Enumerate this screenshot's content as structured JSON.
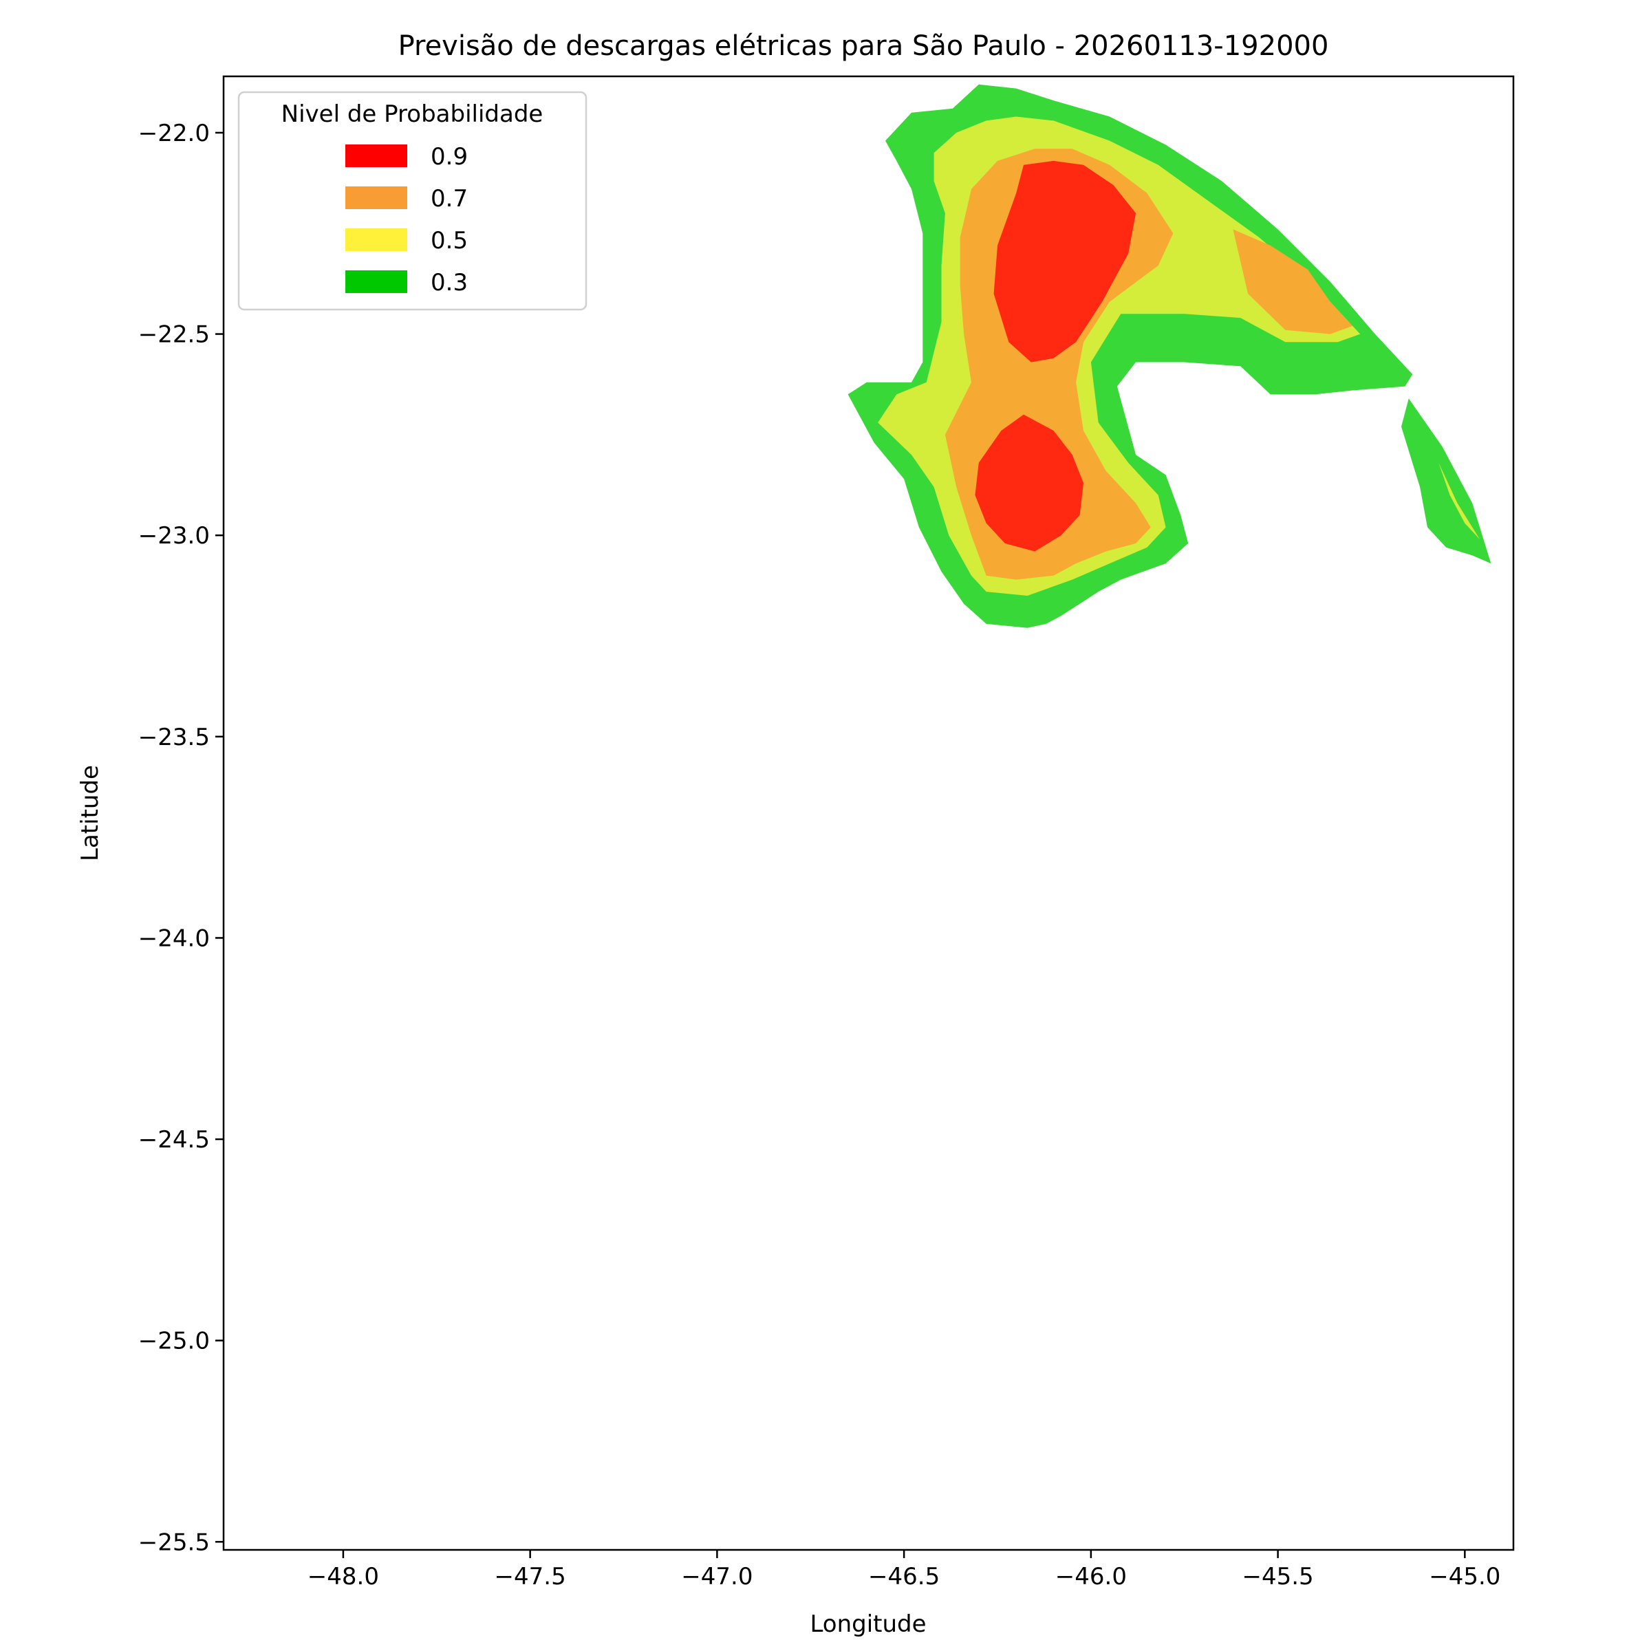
{
  "chart_data": {
    "type": "contourf",
    "title": "Previsão de descargas elétricas para São Paulo - 20260113-192000",
    "xlabel": "Longitude",
    "ylabel": "Latitude",
    "xlim": [
      -48.32,
      -44.87
    ],
    "ylim": [
      -25.52,
      -21.86
    ],
    "xticks": [
      {
        "value": -48.0,
        "label": "−48.0"
      },
      {
        "value": -47.5,
        "label": "−47.5"
      },
      {
        "value": -47.0,
        "label": "−47.0"
      },
      {
        "value": -46.5,
        "label": "−46.5"
      },
      {
        "value": -46.0,
        "label": "−46.0"
      },
      {
        "value": -45.5,
        "label": "−45.5"
      },
      {
        "value": -45.0,
        "label": "−45.0"
      }
    ],
    "yticks": [
      {
        "value": -22.0,
        "label": "−22.0"
      },
      {
        "value": -22.5,
        "label": "−22.5"
      },
      {
        "value": -23.0,
        "label": "−23.0"
      },
      {
        "value": -23.5,
        "label": "−23.5"
      },
      {
        "value": -24.0,
        "label": "−24.0"
      },
      {
        "value": -24.5,
        "label": "−24.5"
      },
      {
        "value": -25.0,
        "label": "−25.0"
      },
      {
        "value": -25.5,
        "label": "−25.5"
      }
    ],
    "grid": false,
    "legend": {
      "title": "Nivel de Probabilidade",
      "placement": "upper-left",
      "entries": [
        {
          "label": "0.9",
          "color": "#ff0000"
        },
        {
          "label": "0.7",
          "color": "#f89c34"
        },
        {
          "label": "0.5",
          "color": "#fff03a"
        },
        {
          "label": "0.3",
          "color": "#00c800"
        }
      ]
    },
    "fill_colors": {
      "0.3": "#38d838",
      "0.5": "#d4ed3a",
      "0.7": "#f6aa34",
      "0.9": "#ff2810"
    },
    "regions": [
      {
        "level": "0.3",
        "polygon": [
          [
            -46.55,
            -22.02
          ],
          [
            -46.48,
            -21.95
          ],
          [
            -46.37,
            -21.94
          ],
          [
            -46.3,
            -21.88
          ],
          [
            -46.2,
            -21.89
          ],
          [
            -46.1,
            -21.92
          ],
          [
            -45.95,
            -21.96
          ],
          [
            -45.8,
            -22.03
          ],
          [
            -45.65,
            -22.12
          ],
          [
            -45.5,
            -22.24
          ],
          [
            -45.36,
            -22.37
          ],
          [
            -45.24,
            -22.5
          ],
          [
            -45.14,
            -22.6
          ],
          [
            -45.16,
            -22.63
          ],
          [
            -45.3,
            -22.64
          ],
          [
            -45.4,
            -22.65
          ],
          [
            -45.52,
            -22.65
          ],
          [
            -45.6,
            -22.58
          ],
          [
            -45.75,
            -22.57
          ],
          [
            -45.88,
            -22.57
          ],
          [
            -45.93,
            -22.63
          ],
          [
            -45.88,
            -22.8
          ],
          [
            -45.8,
            -22.85
          ],
          [
            -45.76,
            -22.95
          ],
          [
            -45.74,
            -23.02
          ],
          [
            -45.8,
            -23.07
          ],
          [
            -45.92,
            -23.11
          ],
          [
            -45.98,
            -23.14
          ],
          [
            -46.03,
            -23.17
          ],
          [
            -46.08,
            -23.2
          ],
          [
            -46.12,
            -23.22
          ],
          [
            -46.17,
            -23.23
          ],
          [
            -46.28,
            -23.22
          ],
          [
            -46.34,
            -23.17
          ],
          [
            -46.4,
            -23.09
          ],
          [
            -46.46,
            -22.98
          ],
          [
            -46.5,
            -22.86
          ],
          [
            -46.58,
            -22.77
          ],
          [
            -46.65,
            -22.65
          ],
          [
            -46.6,
            -22.62
          ],
          [
            -46.48,
            -22.62
          ],
          [
            -46.45,
            -22.57
          ],
          [
            -46.45,
            -22.4
          ],
          [
            -46.45,
            -22.25
          ],
          [
            -46.48,
            -22.14
          ],
          [
            -46.52,
            -22.07
          ]
        ]
      },
      {
        "level": "0.3",
        "polygon": [
          [
            -45.15,
            -22.66
          ],
          [
            -45.06,
            -22.78
          ],
          [
            -44.98,
            -22.92
          ],
          [
            -44.93,
            -23.07
          ],
          [
            -44.98,
            -23.05
          ],
          [
            -45.05,
            -23.03
          ],
          [
            -45.1,
            -22.98
          ],
          [
            -45.12,
            -22.88
          ],
          [
            -45.17,
            -22.73
          ]
        ]
      },
      {
        "level": "0.5",
        "polygon": [
          [
            -46.42,
            -22.05
          ],
          [
            -46.36,
            -22.0
          ],
          [
            -46.28,
            -21.97
          ],
          [
            -46.2,
            -21.96
          ],
          [
            -46.1,
            -21.97
          ],
          [
            -45.95,
            -22.02
          ],
          [
            -45.82,
            -22.08
          ],
          [
            -45.7,
            -22.16
          ],
          [
            -45.55,
            -22.26
          ],
          [
            -45.4,
            -22.38
          ],
          [
            -45.28,
            -22.5
          ],
          [
            -45.34,
            -22.52
          ],
          [
            -45.48,
            -22.52
          ],
          [
            -45.6,
            -22.46
          ],
          [
            -45.75,
            -22.45
          ],
          [
            -45.92,
            -22.45
          ],
          [
            -46.0,
            -22.57
          ],
          [
            -45.98,
            -22.72
          ],
          [
            -45.9,
            -22.82
          ],
          [
            -45.82,
            -22.9
          ],
          [
            -45.8,
            -22.98
          ],
          [
            -45.85,
            -23.03
          ],
          [
            -45.95,
            -23.07
          ],
          [
            -46.05,
            -23.11
          ],
          [
            -46.17,
            -23.15
          ],
          [
            -46.28,
            -23.14
          ],
          [
            -46.32,
            -23.1
          ],
          [
            -46.38,
            -23.0
          ],
          [
            -46.42,
            -22.88
          ],
          [
            -46.48,
            -22.8
          ],
          [
            -46.57,
            -22.72
          ],
          [
            -46.52,
            -22.65
          ],
          [
            -46.44,
            -22.62
          ],
          [
            -46.4,
            -22.47
          ],
          [
            -46.4,
            -22.33
          ],
          [
            -46.39,
            -22.2
          ],
          [
            -46.42,
            -22.12
          ]
        ]
      },
      {
        "level": "0.5",
        "polygon": [
          [
            -45.07,
            -22.82
          ],
          [
            -45.02,
            -22.92
          ],
          [
            -44.96,
            -23.01
          ],
          [
            -45.0,
            -22.97
          ],
          [
            -45.04,
            -22.9
          ]
        ]
      },
      {
        "level": "0.7",
        "polygon": [
          [
            -46.32,
            -22.14
          ],
          [
            -46.25,
            -22.07
          ],
          [
            -46.15,
            -22.04
          ],
          [
            -46.05,
            -22.04
          ],
          [
            -45.95,
            -22.08
          ],
          [
            -45.85,
            -22.15
          ],
          [
            -45.78,
            -22.25
          ],
          [
            -45.82,
            -22.33
          ],
          [
            -45.95,
            -22.42
          ],
          [
            -46.02,
            -22.52
          ],
          [
            -46.04,
            -22.62
          ],
          [
            -46.02,
            -22.74
          ],
          [
            -45.96,
            -22.84
          ],
          [
            -45.88,
            -22.92
          ],
          [
            -45.84,
            -22.98
          ],
          [
            -45.88,
            -23.02
          ],
          [
            -45.96,
            -23.04
          ],
          [
            -46.04,
            -23.07
          ],
          [
            -46.1,
            -23.1
          ],
          [
            -46.2,
            -23.11
          ],
          [
            -46.28,
            -23.1
          ],
          [
            -46.32,
            -23.0
          ],
          [
            -46.36,
            -22.88
          ],
          [
            -46.39,
            -22.75
          ],
          [
            -46.32,
            -22.62
          ],
          [
            -46.34,
            -22.5
          ],
          [
            -46.35,
            -22.38
          ],
          [
            -46.35,
            -22.26
          ]
        ]
      },
      {
        "level": "0.7",
        "polygon": [
          [
            -45.62,
            -22.24
          ],
          [
            -45.52,
            -22.28
          ],
          [
            -45.42,
            -22.34
          ],
          [
            -45.36,
            -22.42
          ],
          [
            -45.3,
            -22.48
          ],
          [
            -45.36,
            -22.5
          ],
          [
            -45.48,
            -22.49
          ],
          [
            -45.58,
            -22.4
          ]
        ]
      },
      {
        "level": "0.9",
        "polygon": [
          [
            -46.2,
            -22.15
          ],
          [
            -46.18,
            -22.08
          ],
          [
            -46.1,
            -22.07
          ],
          [
            -46.02,
            -22.08
          ],
          [
            -45.94,
            -22.13
          ],
          [
            -45.88,
            -22.2
          ],
          [
            -45.9,
            -22.3
          ],
          [
            -45.97,
            -22.42
          ],
          [
            -46.04,
            -22.52
          ],
          [
            -46.1,
            -22.56
          ],
          [
            -46.16,
            -22.57
          ],
          [
            -46.22,
            -22.52
          ],
          [
            -46.26,
            -22.4
          ],
          [
            -46.25,
            -22.28
          ]
        ]
      },
      {
        "level": "0.9",
        "polygon": [
          [
            -46.18,
            -22.7
          ],
          [
            -46.24,
            -22.74
          ],
          [
            -46.3,
            -22.82
          ],
          [
            -46.31,
            -22.9
          ],
          [
            -46.28,
            -22.97
          ],
          [
            -46.23,
            -23.02
          ],
          [
            -46.15,
            -23.04
          ],
          [
            -46.08,
            -23.0
          ],
          [
            -46.03,
            -22.95
          ],
          [
            -46.02,
            -22.87
          ],
          [
            -46.05,
            -22.8
          ],
          [
            -46.1,
            -22.74
          ]
        ]
      }
    ]
  }
}
